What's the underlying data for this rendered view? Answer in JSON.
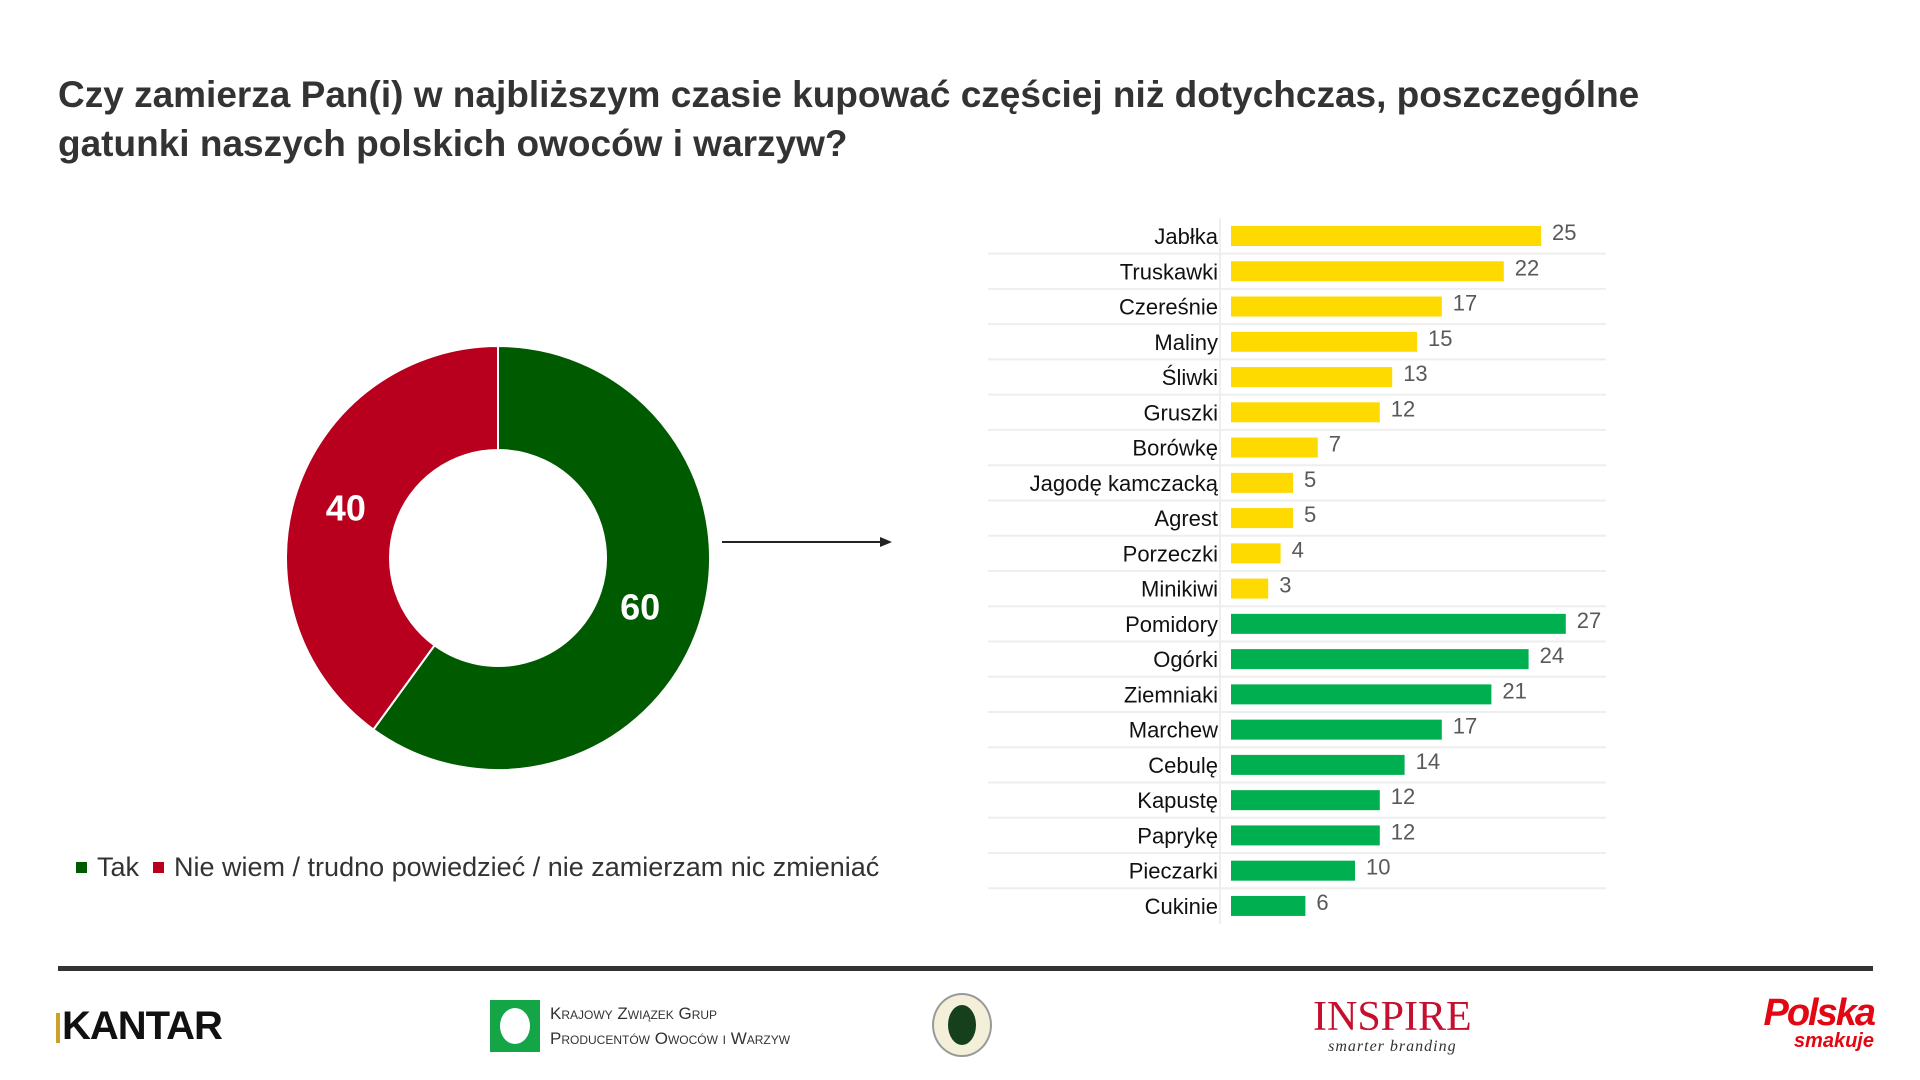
{
  "title": {
    "line1": "Czy zamierza Pan(i) w najbliższym czasie kupować częściej niż dotychczas, poszczególne",
    "line2": "gatunki naszych polskich owoców i warzyw?"
  },
  "colors": {
    "yes": "#005A00",
    "no": "#B8001E",
    "fruit": "#FFDA00",
    "veg": "#00B050",
    "text": "#333333",
    "value": "#595959"
  },
  "chart_data": [
    {
      "type": "pie",
      "variant": "donut",
      "categories": [
        "Tak",
        "Nie wiem / trudno powiedzieć / nie zamierzam nic zmieniać"
      ],
      "values": [
        60,
        40
      ],
      "data_labels": [
        "60",
        "40"
      ],
      "legend": "bottom"
    },
    {
      "type": "bar",
      "orientation": "horizontal",
      "categories": [
        "Jabłka",
        "Truskawki",
        "Czereśnie",
        "Maliny",
        "Śliwki",
        "Gruszki",
        "Borówkę",
        "Jagodę kamczacką",
        "Agrest",
        "Porzeczki",
        "Minikiwi",
        "Pomidory",
        "Ogórki",
        "Ziemniaki",
        "Marchew",
        "Cebulę",
        "Kapustę",
        "Paprykę",
        "Pieczarki",
        "Cukinie"
      ],
      "values": [
        25,
        22,
        17,
        15,
        13,
        12,
        7,
        5,
        5,
        4,
        3,
        27,
        24,
        21,
        17,
        14,
        12,
        12,
        10,
        6
      ],
      "groups": [
        "fruit",
        "fruit",
        "fruit",
        "fruit",
        "fruit",
        "fruit",
        "fruit",
        "fruit",
        "fruit",
        "fruit",
        "fruit",
        "veg",
        "veg",
        "veg",
        "veg",
        "veg",
        "veg",
        "veg",
        "veg",
        "veg"
      ],
      "xlim": [
        0,
        30
      ],
      "grid": true
    }
  ],
  "footer": {
    "kantar": "KANTAR",
    "kzg_line1": "Krajowy Związek Grup",
    "kzg_line2": "Producentów Owoców i Warzyw",
    "inspire": "INSPIRE",
    "inspire_tagline": "smarter branding",
    "polska": "Polska",
    "smakuje": "smakuje"
  }
}
